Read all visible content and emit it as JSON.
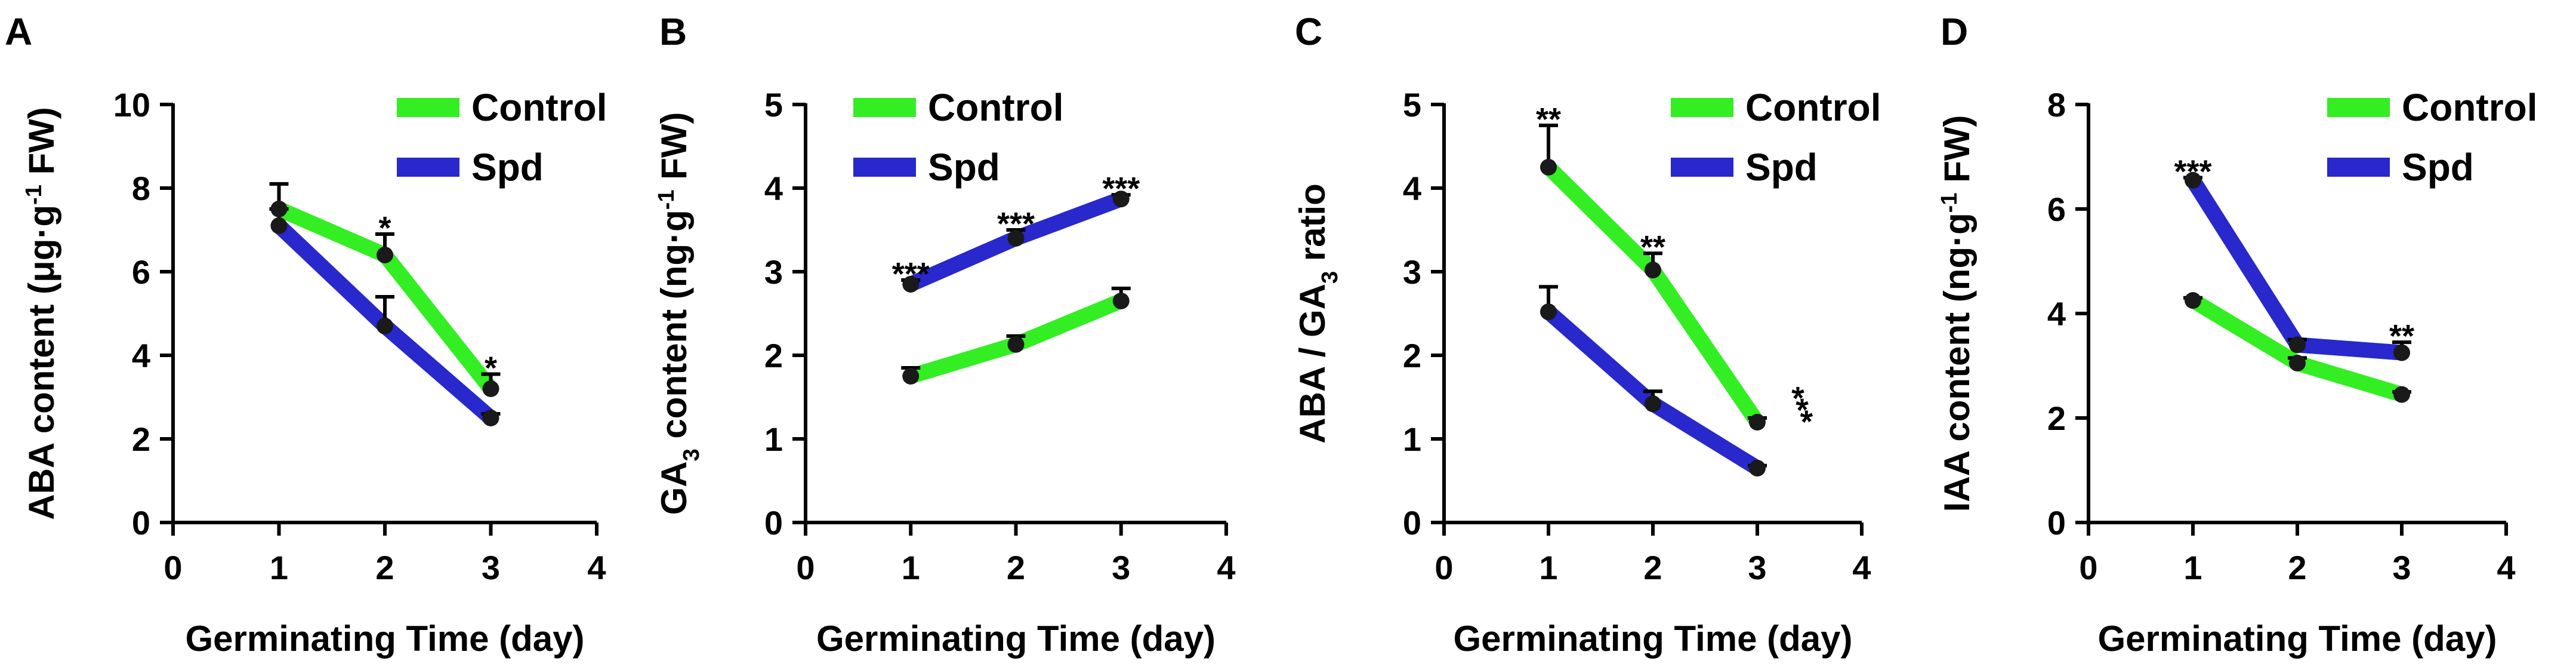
{
  "colors": {
    "control": "#33ee22",
    "spd": "#2828cc",
    "axis": "#000000"
  },
  "chart_data": [
    {
      "type": "line",
      "panel": "A",
      "title": "",
      "ylabel_html": "ABA content (μg·g<tspan baseline-shift=\"super\" font-size=\"38\">-1</tspan> FW)",
      "ylabel": "ABA content (μg·g-1 FW)",
      "xlabel": "Germinating Time (day)",
      "xlim": [
        0,
        4
      ],
      "ylim": [
        0,
        10
      ],
      "xticks": [
        0,
        1,
        2,
        3,
        4
      ],
      "yticks": [
        0,
        2,
        4,
        6,
        8,
        10
      ],
      "x": [
        1,
        2,
        3
      ],
      "series": [
        {
          "name": "Control",
          "values": [
            7.5,
            6.4,
            3.2
          ],
          "errors": [
            0.6,
            0.5,
            0.35
          ]
        },
        {
          "name": "Spd",
          "values": [
            7.1,
            4.7,
            2.5
          ],
          "errors": [
            0.4,
            0.7,
            0.1
          ]
        }
      ],
      "annotations": [
        {
          "x": 2,
          "y": 6.4,
          "text": "*"
        },
        {
          "x": 3,
          "y": 3.2,
          "text": "*"
        }
      ]
    },
    {
      "type": "line",
      "panel": "B",
      "title": "",
      "ylabel_html": "GA<tspan baseline-shift=\"sub\" font-size=\"38\">3</tspan> content (ng·g<tspan baseline-shift=\"super\" font-size=\"38\">-1</tspan> FW)",
      "ylabel": "GA3 content (ng·g-1 FW)",
      "xlabel": "Germinating Time (day)",
      "xlim": [
        0,
        4
      ],
      "ylim": [
        0,
        5
      ],
      "xticks": [
        0,
        1,
        2,
        3,
        4
      ],
      "yticks": [
        0,
        1,
        2,
        3,
        4,
        5
      ],
      "x": [
        1,
        2,
        3
      ],
      "series": [
        {
          "name": "Control",
          "values": [
            1.75,
            2.13,
            2.65
          ],
          "errors": [
            0.1,
            0.1,
            0.15
          ]
        },
        {
          "name": "Spd",
          "values": [
            2.85,
            3.4,
            3.87
          ],
          "errors": [
            0.05,
            0.1,
            0.05
          ]
        }
      ],
      "annotations": [
        {
          "x": 1,
          "y": 2.85,
          "text": "***"
        },
        {
          "x": 2,
          "y": 3.4,
          "text": "***"
        },
        {
          "x": 3,
          "y": 3.87,
          "text": "***"
        }
      ]
    },
    {
      "type": "line",
      "panel": "C",
      "title": "",
      "ylabel_html": "ABA / GA<tspan baseline-shift=\"sub\" font-size=\"38\">3</tspan> ratio",
      "ylabel": "ABA / GA3 ratio",
      "xlabel": "Germinating Time (day)",
      "xlim": [
        0,
        4
      ],
      "ylim": [
        0,
        5
      ],
      "xticks": [
        0,
        1,
        2,
        3,
        4
      ],
      "yticks": [
        0,
        1,
        2,
        3,
        4,
        5
      ],
      "x": [
        1,
        2,
        3
      ],
      "series": [
        {
          "name": "Control",
          "values": [
            4.25,
            3.02,
            1.2
          ],
          "errors": [
            0.5,
            0.2,
            0.05
          ]
        },
        {
          "name": "Spd",
          "values": [
            2.52,
            1.42,
            0.65
          ],
          "errors": [
            0.3,
            0.15,
            0.03
          ]
        }
      ],
      "annotations": [
        {
          "x": 1,
          "y": 4.25,
          "text": "**"
        },
        {
          "x": 2,
          "y": 3.02,
          "text": "**"
        },
        {
          "x": 3,
          "y": 1.2,
          "text": "***",
          "rotated": true
        }
      ]
    },
    {
      "type": "line",
      "panel": "D",
      "title": "",
      "ylabel_html": "IAA content (ng·g<tspan baseline-shift=\"super\" font-size=\"38\">-1</tspan> FW)",
      "ylabel": "IAA content (ng·g-1 FW)",
      "xlabel": "Germinating Time (day)",
      "xlim": [
        0,
        4
      ],
      "ylim": [
        0,
        8
      ],
      "xticks": [
        0,
        1,
        2,
        3,
        4
      ],
      "yticks": [
        0,
        2,
        4,
        6,
        8
      ],
      "x": [
        1,
        2,
        3
      ],
      "series": [
        {
          "name": "Control",
          "values": [
            4.25,
            3.05,
            2.45
          ],
          "errors": [
            0.05,
            0.1,
            0.05
          ]
        },
        {
          "name": "Spd",
          "values": [
            6.55,
            3.4,
            3.25
          ],
          "errors": [
            0.05,
            0.1,
            0.2
          ]
        }
      ],
      "annotations": [
        {
          "x": 1,
          "y": 6.55,
          "text": "***"
        },
        {
          "x": 3,
          "y": 3.25,
          "text": "**"
        }
      ]
    }
  ]
}
